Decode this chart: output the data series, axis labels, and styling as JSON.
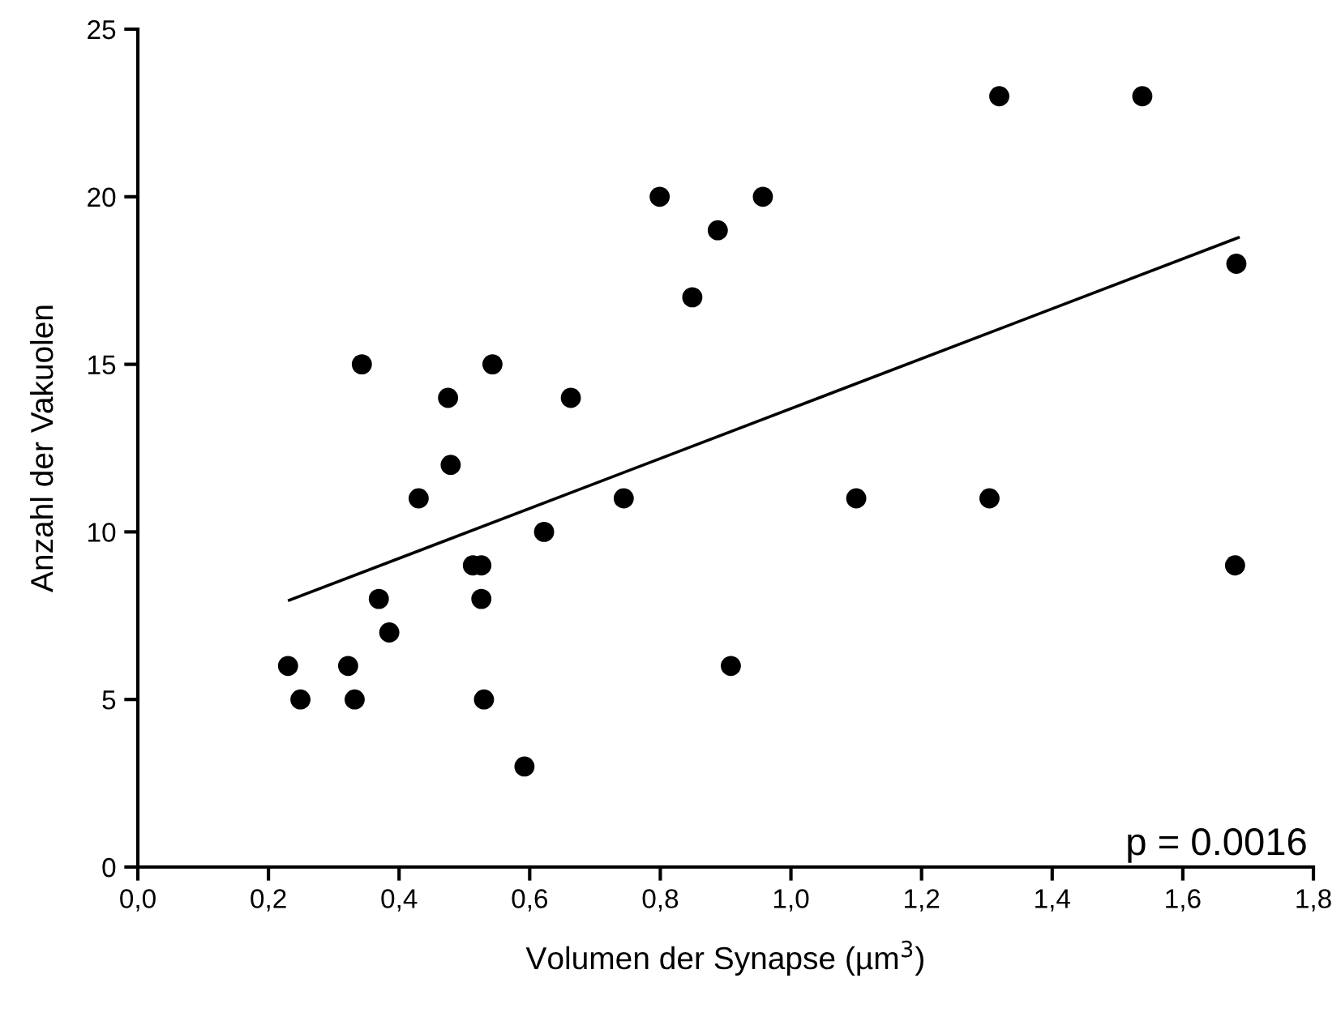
{
  "chart_data": {
    "type": "scatter",
    "xlabel": "Volumen der Synapse (µm$^{3}$)",
    "ylabel": "Anzahl der Vakuolen",
    "series": [
      {
        "color": "#000000",
        "marker": "circle",
        "x": [
          0.23,
          0.249,
          0.322,
          0.332,
          0.343,
          0.369,
          0.385,
          0.43,
          0.475,
          0.479,
          0.513,
          0.526,
          0.526,
          0.53,
          0.543,
          0.592,
          0.622,
          0.663,
          0.744,
          0.799,
          0.849,
          0.888,
          0.957,
          0.908,
          1.1,
          1.304,
          1.319,
          1.538,
          1.682,
          1.68
        ],
        "values": [
          6,
          5,
          6,
          5,
          15,
          8,
          7,
          11,
          14,
          12,
          9,
          9,
          8,
          5,
          15,
          3,
          10,
          14,
          11,
          20,
          17,
          19,
          20,
          6,
          11,
          11,
          23,
          23,
          18,
          9
        ]
      },
      {
        "type": "line",
        "color": "#000000",
        "marker": "none",
        "line_style": "solid",
        "x": [
          0.232,
          1.685
        ],
        "values": [
          7.96,
          18.78
        ]
      }
    ],
    "xlim": [
      0,
      1.8
    ],
    "ylim": [
      0,
      25
    ],
    "xticks": [
      {
        "value": 0,
        "label": "0,0"
      },
      {
        "value": 0.2,
        "label": "0,2"
      },
      {
        "value": 0.4,
        "label": "0,4"
      },
      {
        "value": 0.6,
        "label": "0,6"
      },
      {
        "value": 0.8,
        "label": "0,8"
      },
      {
        "value": 1.0,
        "label": "1,0"
      },
      {
        "value": 1.2,
        "label": "1,2"
      },
      {
        "value": 1.4,
        "label": "1,4"
      },
      {
        "value": 1.6,
        "label": "1,6"
      },
      {
        "value": 1.8,
        "label": "1,8"
      }
    ],
    "yticks": [
      0,
      5,
      10,
      15,
      20,
      25
    ],
    "annotations": [
      "p = 0.0016"
    ]
  }
}
